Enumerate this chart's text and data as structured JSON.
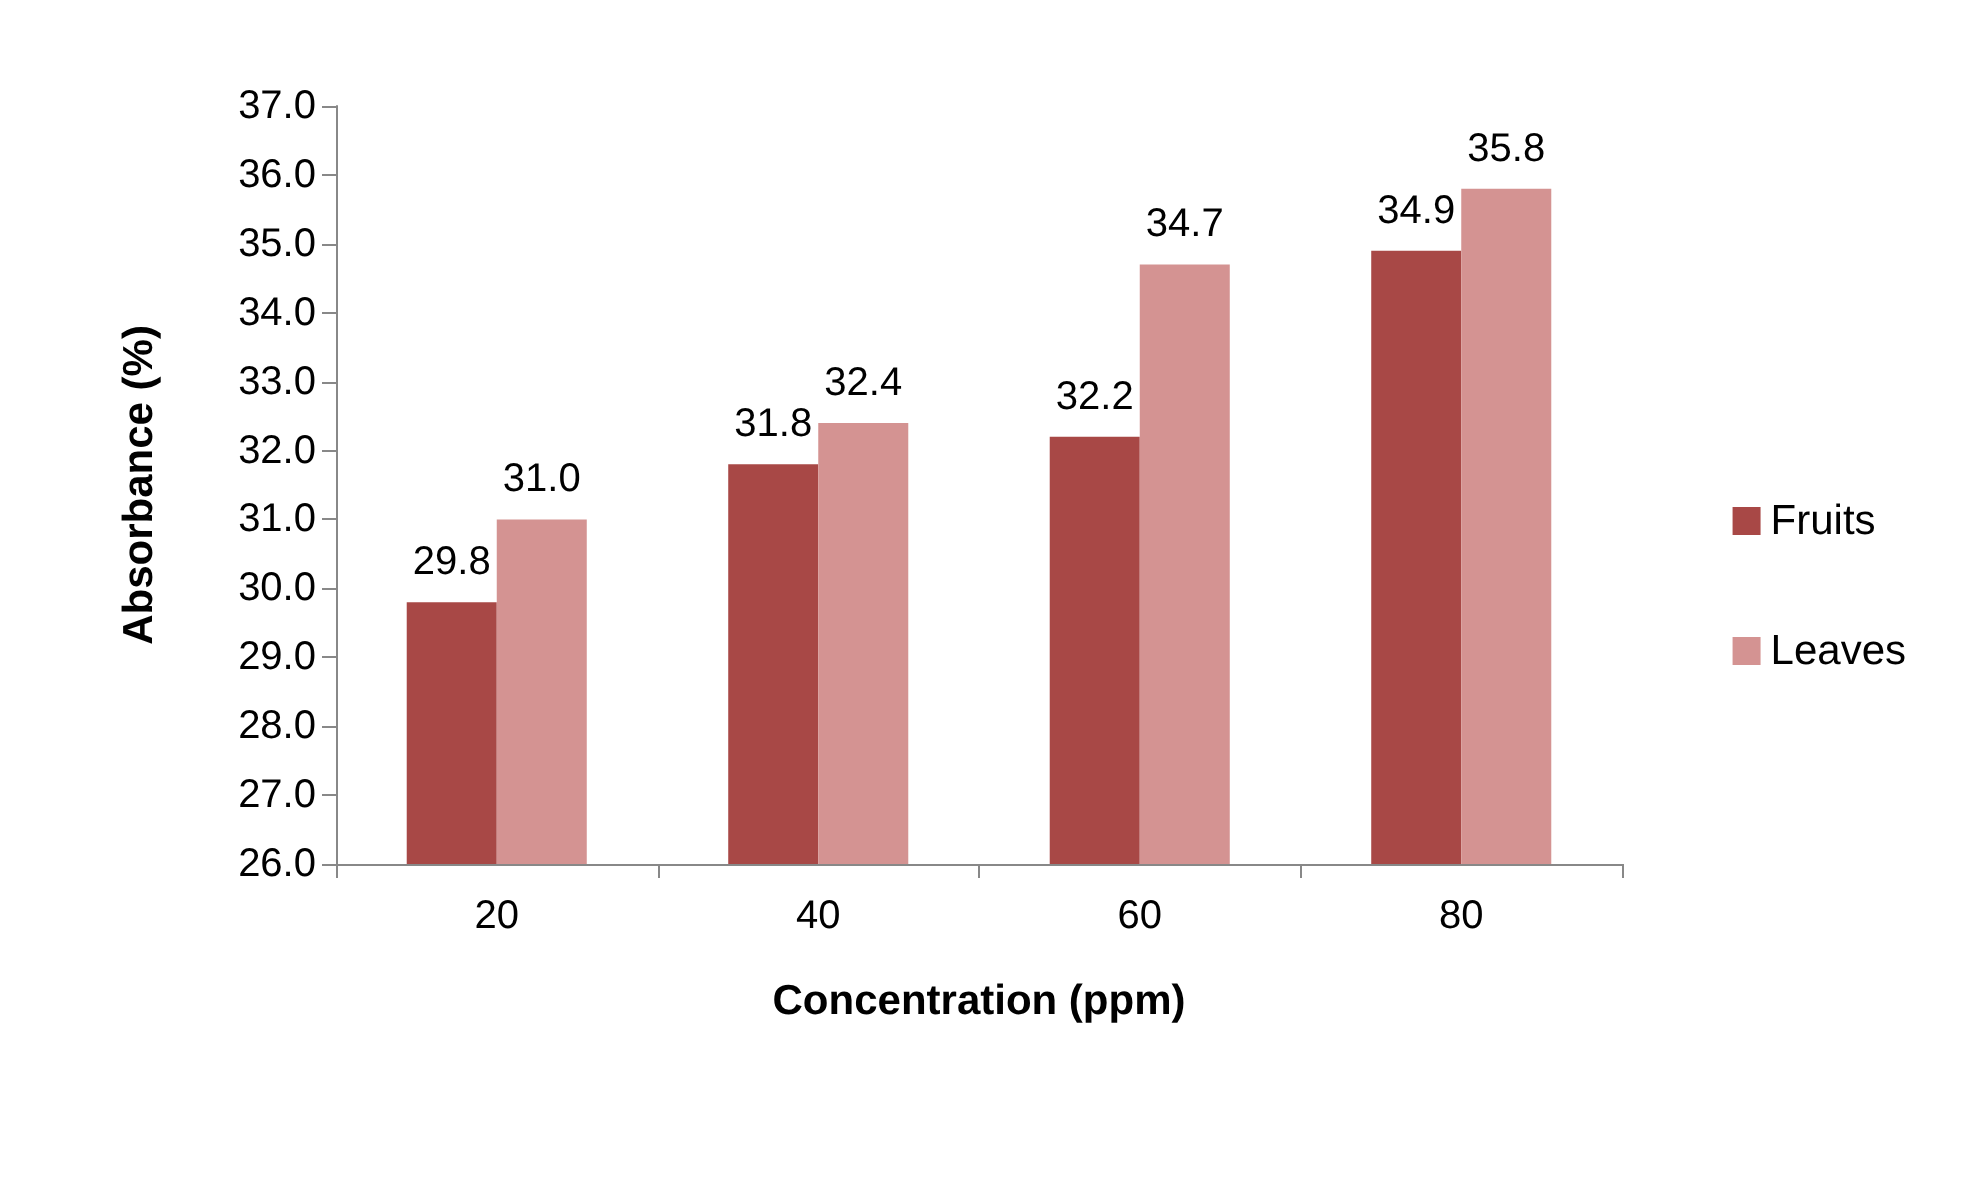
{
  "chart_data": {
    "type": "bar",
    "xlabel": "Concentration (ppm)",
    "ylabel": "Absorbance (%)",
    "categories": [
      "20",
      "40",
      "60",
      "80"
    ],
    "series": [
      {
        "name": "Fruits",
        "color": "#a84846",
        "values": [
          29.8,
          31.8,
          32.2,
          34.9
        ],
        "value_labels": [
          "29.8",
          "31.8",
          "32.2",
          "34.9"
        ]
      },
      {
        "name": "Leaves",
        "color": "#d49392",
        "values": [
          31.0,
          32.4,
          34.7,
          35.8
        ],
        "value_labels": [
          "31.0",
          "32.4",
          "34.7",
          "35.8"
        ]
      }
    ],
    "ylim": [
      26,
      37
    ],
    "yticks": [
      {
        "value": 26,
        "label": "26.0"
      },
      {
        "value": 27,
        "label": "27.0"
      },
      {
        "value": 28,
        "label": "28.0"
      },
      {
        "value": 29,
        "label": "29.0"
      },
      {
        "value": 30,
        "label": "30.0"
      },
      {
        "value": 31,
        "label": "31.0"
      },
      {
        "value": 32,
        "label": "32.0"
      },
      {
        "value": 33,
        "label": "33.0"
      },
      {
        "value": 34,
        "label": "34.0"
      },
      {
        "value": 35,
        "label": "35.0"
      },
      {
        "value": 36,
        "label": "36.0"
      },
      {
        "value": 37,
        "label": "37.0"
      }
    ],
    "grid": false,
    "legend": "right"
  }
}
